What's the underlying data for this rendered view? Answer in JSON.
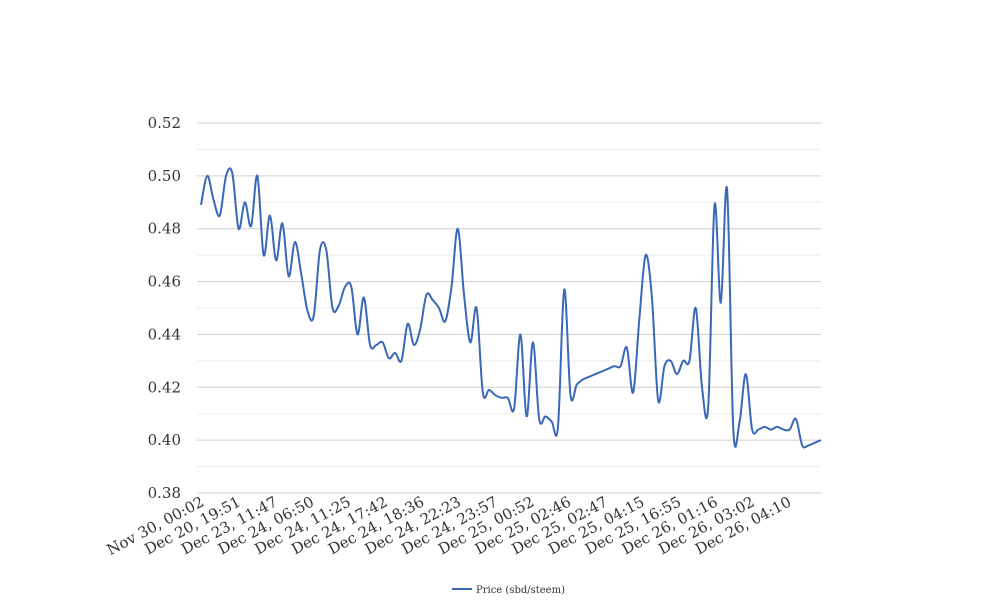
{
  "chart_data": {
    "type": "line",
    "title": "",
    "xlabel": "",
    "ylabel": "",
    "ylim": [
      0.38,
      0.52
    ],
    "yticks": [
      "0.38",
      "0.40",
      "0.42",
      "0.44",
      "0.46",
      "0.48",
      "0.50",
      "0.52"
    ],
    "grid": true,
    "minor_grid": true,
    "legend_position": "bottom-center",
    "line_color": "#3a68b8",
    "x_tick_labels": [
      "Nov 30, 00:02",
      "Dec 20, 19:51",
      "Dec 23, 11:47",
      "Dec 24, 06:50",
      "Dec 24, 11:25",
      "Dec 24, 17:42",
      "Dec 24, 18:36",
      "Dec 24, 22:23",
      "Dec 24, 23:57",
      "Dec 25, 00:52",
      "Dec 25, 02:46",
      "Dec 25, 02:47",
      "Dec 25, 04:15",
      "Dec 25, 16:55",
      "Dec 26, 01:16",
      "Dec 26, 03:02",
      "Dec 26, 04:10"
    ],
    "series": [
      {
        "name": "Price (sbd/steem)",
        "values": [
          0.489,
          0.5,
          0.491,
          0.485,
          0.5,
          0.501,
          0.48,
          0.49,
          0.481,
          0.5,
          0.47,
          0.485,
          0.468,
          0.482,
          0.462,
          0.475,
          0.463,
          0.449,
          0.447,
          0.472,
          0.472,
          0.45,
          0.451,
          0.458,
          0.458,
          0.44,
          0.454,
          0.436,
          0.436,
          0.437,
          0.431,
          0.433,
          0.43,
          0.444,
          0.436,
          0.442,
          0.455,
          0.453,
          0.45,
          0.445,
          0.458,
          0.48,
          0.455,
          0.437,
          0.45,
          0.418,
          0.419,
          0.417,
          0.416,
          0.416,
          0.412,
          0.44,
          0.409,
          0.437,
          0.408,
          0.409,
          0.407,
          0.405,
          0.457,
          0.417,
          0.421,
          0.423,
          0.424,
          0.425,
          0.426,
          0.427,
          0.428,
          0.428,
          0.435,
          0.418,
          0.446,
          0.47,
          0.454,
          0.415,
          0.428,
          0.43,
          0.425,
          0.43,
          0.43,
          0.45,
          0.42,
          0.413,
          0.489,
          0.452,
          0.495,
          0.404,
          0.407,
          0.425,
          0.404,
          0.404,
          0.405,
          0.404,
          0.405,
          0.404,
          0.404,
          0.408,
          0.398,
          0.398,
          0.399,
          0.4
        ]
      }
    ]
  }
}
